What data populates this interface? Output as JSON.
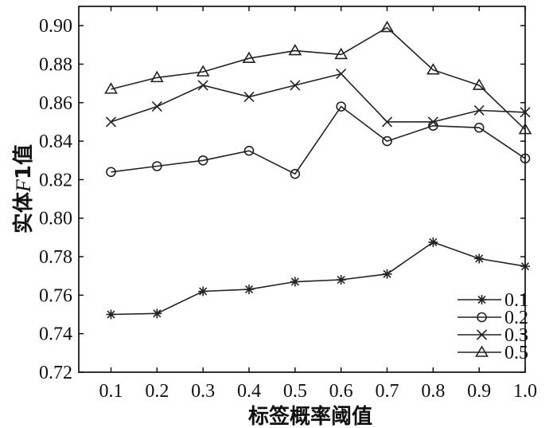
{
  "chart_data": {
    "type": "line",
    "x": [
      0.1,
      0.2,
      0.3,
      0.4,
      0.5,
      0.6,
      0.7,
      0.8,
      0.9,
      1.0
    ],
    "x_tick_labels": [
      "0.1",
      "0.2",
      "0.3",
      "0.4",
      "0.5",
      "0.6",
      "0.7",
      "0.8",
      "0.9",
      "1.0"
    ],
    "y_tick_labels": [
      "0.72",
      "0.74",
      "0.76",
      "0.78",
      "0.80",
      "0.82",
      "0.84",
      "0.86",
      "0.88",
      "0.90"
    ],
    "y_ticks": [
      0.72,
      0.74,
      0.76,
      0.78,
      0.8,
      0.82,
      0.84,
      0.86,
      0.88,
      0.9
    ],
    "xlim": [
      0.03,
      1.0
    ],
    "ylim": [
      0.72,
      0.91
    ],
    "xlabel": "标签概率阈值",
    "ylabel_prefix": "实体",
    "ylabel_italic": "F",
    "ylabel_suffix": "1值",
    "grid": false,
    "legend_position": "bottom-right",
    "series": [
      {
        "name": "0.1",
        "marker": "star",
        "values": [
          0.75,
          0.7505,
          0.762,
          0.763,
          0.767,
          0.768,
          0.771,
          0.7875,
          0.779,
          0.775
        ]
      },
      {
        "name": "0.2",
        "marker": "circle",
        "values": [
          0.824,
          0.827,
          0.83,
          0.835,
          0.823,
          0.858,
          0.84,
          0.848,
          0.847,
          0.831
        ]
      },
      {
        "name": "0.3",
        "marker": "x",
        "values": [
          0.85,
          0.858,
          0.869,
          0.863,
          0.869,
          0.875,
          0.85,
          0.85,
          0.856,
          0.855
        ]
      },
      {
        "name": "0.5",
        "marker": "triangle",
        "values": [
          0.867,
          0.873,
          0.876,
          0.883,
          0.887,
          0.885,
          0.899,
          0.877,
          0.869,
          0.846
        ]
      }
    ]
  }
}
